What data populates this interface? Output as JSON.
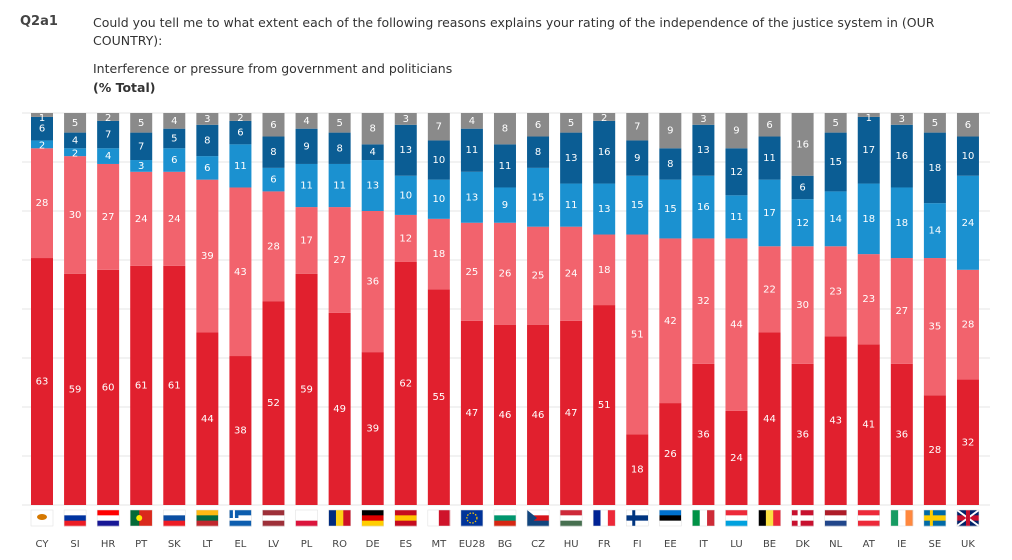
{
  "header": {
    "id": "Q2a1",
    "question": "Could you tell me to what extent each of the following reasons explains your rating of the independence of the justice system in (OUR COUNTRY):",
    "subtitle": "Interference or pressure from government and politicians",
    "unit": "(% Total)"
  },
  "chart_data": {
    "type": "bar",
    "stacked": true,
    "orientation": "vertical",
    "ylim": [
      0,
      100
    ],
    "grid": true,
    "categories": [
      "CY",
      "SI",
      "HR",
      "PT",
      "SK",
      "LT",
      "EL",
      "LV",
      "PL",
      "RO",
      "DE",
      "ES",
      "MT",
      "EU28",
      "BG",
      "CZ",
      "HU",
      "FR",
      "FI",
      "EE",
      "IT",
      "LU",
      "BE",
      "DK",
      "NL",
      "AT",
      "IE",
      "SE",
      "UK"
    ],
    "series": [
      {
        "color": "#e1202e",
        "values": [
          63,
          59,
          60,
          61,
          61,
          44,
          38,
          52,
          59,
          49,
          39,
          62,
          55,
          47,
          46,
          46,
          47,
          51,
          18,
          26,
          36,
          24,
          44,
          36,
          43,
          41,
          36,
          28,
          32
        ]
      },
      {
        "color": "#f2636d",
        "values": [
          28,
          30,
          27,
          24,
          24,
          39,
          43,
          28,
          17,
          27,
          36,
          12,
          18,
          25,
          26,
          25,
          24,
          18,
          51,
          42,
          32,
          44,
          22,
          30,
          23,
          23,
          27,
          35,
          28
        ]
      },
      {
        "color": "#1b91d0",
        "values": [
          2,
          2,
          4,
          3,
          6,
          6,
          11,
          6,
          11,
          11,
          13,
          10,
          10,
          13,
          9,
          15,
          11,
          13,
          15,
          15,
          16,
          11,
          17,
          12,
          14,
          18,
          18,
          14,
          24
        ]
      },
      {
        "color": "#0b5d94",
        "values": [
          6,
          4,
          7,
          7,
          5,
          8,
          6,
          8,
          9,
          8,
          4,
          13,
          10,
          11,
          11,
          8,
          13,
          16,
          9,
          8,
          13,
          12,
          11,
          6,
          15,
          17,
          16,
          18,
          10
        ]
      },
      {
        "color": "#8a8a8a",
        "values": [
          1,
          5,
          2,
          5,
          4,
          3,
          2,
          6,
          4,
          5,
          8,
          3,
          7,
          4,
          8,
          6,
          5,
          2,
          7,
          9,
          3,
          9,
          6,
          16,
          5,
          1,
          3,
          5,
          6
        ]
      }
    ],
    "flags": {
      "CY": [
        "h",
        "#ffffff",
        "#ffffff",
        "#ffffff"
      ],
      "SI": [
        "h",
        "#ffffff",
        "#0033a0",
        "#ed1c24"
      ],
      "HR": [
        "h",
        "#ff0000",
        "#ffffff",
        "#171796"
      ],
      "PT": [
        "v",
        "#046a38",
        "#da291c",
        "#da291c"
      ],
      "SK": [
        "h",
        "#ffffff",
        "#0b4ea2",
        "#ee1c25"
      ],
      "LT": [
        "h",
        "#fdb913",
        "#006a44",
        "#c1272d"
      ],
      "EL": [
        "h",
        "#0d5eaf",
        "#ffffff",
        "#0d5eaf"
      ],
      "LV": [
        "h",
        "#9e3039",
        "#ffffff",
        "#9e3039"
      ],
      "PL": [
        "h",
        "#ffffff",
        "#ffffff",
        "#dc143c"
      ],
      "RO": [
        "v",
        "#002b7f",
        "#fcd116",
        "#ce1126"
      ],
      "DE": [
        "h",
        "#000000",
        "#dd0000",
        "#ffce00"
      ],
      "ES": [
        "h",
        "#c60b1e",
        "#ffc400",
        "#c60b1e"
      ],
      "MT": [
        "v",
        "#ffffff",
        "#ffffff",
        "#cf142b"
      ],
      "EU28": [
        "h",
        "#003399",
        "#003399",
        "#003399"
      ],
      "BG": [
        "h",
        "#ffffff",
        "#00966e",
        "#d62612"
      ],
      "CZ": [
        "h",
        "#ffffff",
        "#d7141a",
        "#11457e"
      ],
      "HU": [
        "h",
        "#ce2939",
        "#ffffff",
        "#477050"
      ],
      "FR": [
        "v",
        "#002395",
        "#ffffff",
        "#ed2939"
      ],
      "FI": [
        "h",
        "#ffffff",
        "#003580",
        "#ffffff"
      ],
      "EE": [
        "h",
        "#0072ce",
        "#000000",
        "#ffffff"
      ],
      "IT": [
        "v",
        "#009246",
        "#ffffff",
        "#ce2b37"
      ],
      "LU": [
        "h",
        "#ed2939",
        "#ffffff",
        "#00a1de"
      ],
      "BE": [
        "v",
        "#000000",
        "#fae042",
        "#ed2939"
      ],
      "DK": [
        "h",
        "#c8102e",
        "#ffffff",
        "#c8102e"
      ],
      "NL": [
        "h",
        "#ae1c28",
        "#ffffff",
        "#21468b"
      ],
      "AT": [
        "h",
        "#ed2939",
        "#ffffff",
        "#ed2939"
      ],
      "IE": [
        "v",
        "#169b62",
        "#ffffff",
        "#ff883e"
      ],
      "SE": [
        "h",
        "#006aa7",
        "#fecc00",
        "#006aa7"
      ],
      "UK": [
        "h",
        "#012169",
        "#c8102e",
        "#012169"
      ]
    }
  }
}
